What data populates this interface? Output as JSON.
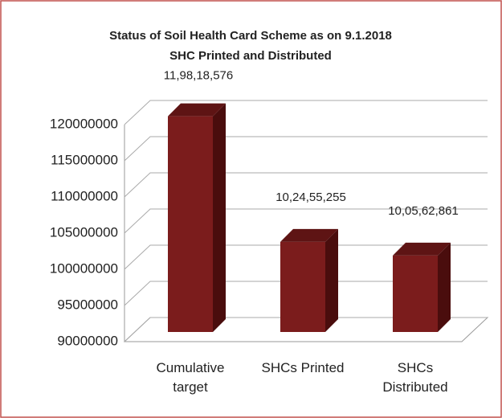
{
  "chart_data": {
    "type": "bar3d",
    "title": "Status of Soil Health Card Scheme  as on 9.1.2018",
    "subtitle": "SHC Printed and Distributed",
    "categories": [
      "Cumulative target",
      "SHCs Printed",
      "SHCs Distributed"
    ],
    "values": [
      119818576,
      102455255,
      100562861
    ],
    "value_labels": [
      "11,98,18,576",
      "10,24,55,255",
      "10,05,62,861"
    ],
    "color": "#7b1c1c",
    "ylim": [
      90000000,
      120000000
    ],
    "yticks": [
      90000000,
      95000000,
      100000000,
      105000000,
      110000000,
      115000000,
      120000000
    ],
    "grid": true
  }
}
